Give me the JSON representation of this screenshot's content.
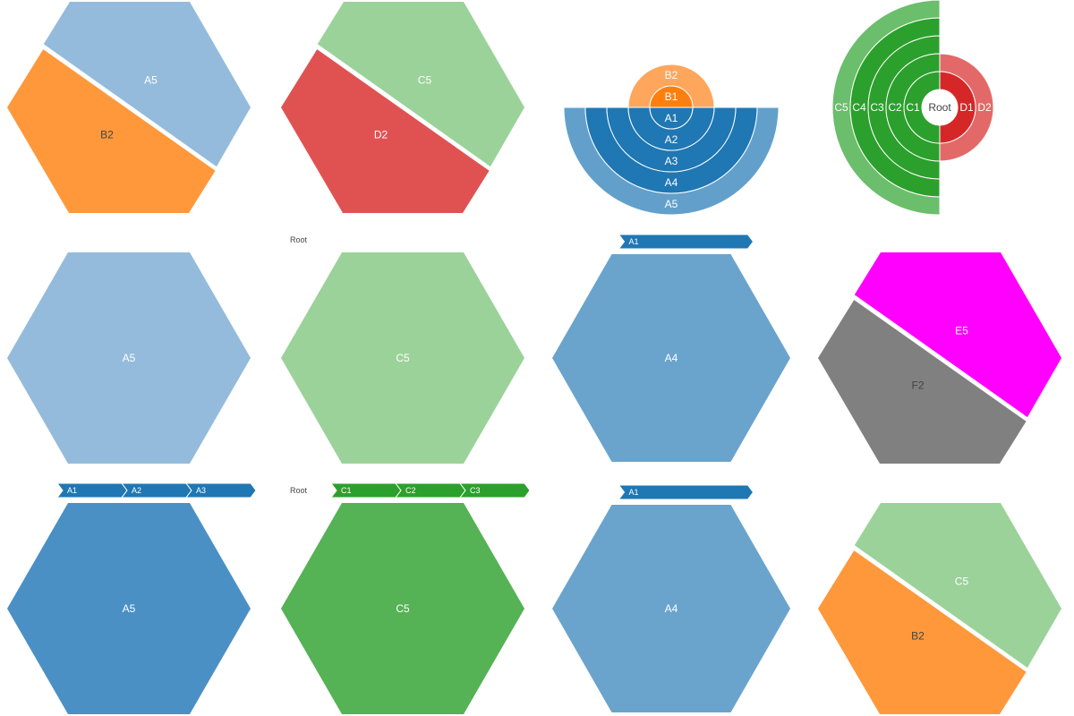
{
  "chart_data": [
    {
      "type": "treemap",
      "name": "hex-A5-B2-top",
      "pathbar": [],
      "tiles": [
        {
          "label": "A5",
          "color": "#94bbdb",
          "text_color": "#ffffff"
        },
        {
          "label": "B2",
          "color": "#fe983b",
          "text_color": "#444444"
        }
      ]
    },
    {
      "type": "treemap",
      "name": "hex-C5-D2-top",
      "pathbar": [],
      "tiles": [
        {
          "label": "C5",
          "color": "#9bd29a",
          "text_color": "#ffffff"
        },
        {
          "label": "D2",
          "color": "#e05252",
          "text_color": "#ffffff"
        }
      ]
    },
    {
      "type": "sunburst",
      "name": "half-sunburst-A-B",
      "rings_down": [
        {
          "label": "A1",
          "color": "#1f77b4"
        },
        {
          "label": "A2",
          "color": "#1f77b4"
        },
        {
          "label": "A3",
          "color": "#1f77b4"
        },
        {
          "label": "A4",
          "color": "#1f77b4"
        },
        {
          "label": "A5",
          "color": "#62a0cb"
        }
      ],
      "rings_up": [
        {
          "label": "B1",
          "color": "#ff7f0e"
        },
        {
          "label": "B2",
          "color": "#ffa65d"
        }
      ]
    },
    {
      "type": "sunburst",
      "name": "half-sunburst-C-D",
      "center": "Root",
      "rings_left": [
        {
          "label": "C1",
          "color": "#2ca02c"
        },
        {
          "label": "C2",
          "color": "#2ca02c"
        },
        {
          "label": "C3",
          "color": "#2ca02c"
        },
        {
          "label": "C4",
          "color": "#2ca02c"
        },
        {
          "label": "C5",
          "color": "#6bbe6b"
        }
      ],
      "rings_right": [
        {
          "label": "D1",
          "color": "#d62728"
        },
        {
          "label": "D2",
          "color": "#e36969"
        }
      ]
    },
    {
      "type": "treemap",
      "name": "hex-A5-mid",
      "pathbar": [],
      "tiles": [
        {
          "label": "A5",
          "color": "#94bbdb",
          "text_color": "#ffffff"
        }
      ]
    },
    {
      "type": "treemap",
      "name": "hex-C5-mid",
      "root_label": "Root",
      "pathbar": [],
      "tiles": [
        {
          "label": "C5",
          "color": "#9bd29a",
          "text_color": "#ffffff"
        }
      ]
    },
    {
      "type": "treemap",
      "name": "hex-A4-mid",
      "pathbar": [
        "A1"
      ],
      "pathbar_color": "#1f77b4",
      "tiles": [
        {
          "label": "A4",
          "color": "#6aa4cc",
          "text_color": "#ffffff"
        }
      ]
    },
    {
      "type": "treemap",
      "name": "hex-E5-F2-mid",
      "pathbar": [],
      "tiles": [
        {
          "label": "E5",
          "color": "#ff00ff",
          "text_color": "#ffffff"
        },
        {
          "label": "F2",
          "color": "#808080",
          "text_color": "#444444"
        }
      ]
    },
    {
      "type": "treemap",
      "name": "hex-A5-bottom",
      "pathbar": [
        "A1",
        "A2",
        "A3"
      ],
      "pathbar_color": "#1f77b4",
      "tiles": [
        {
          "label": "A5",
          "color": "#4a90c4",
          "text_color": "#ffffff"
        }
      ]
    },
    {
      "type": "treemap",
      "name": "hex-C5-bottom",
      "root_label": "Root",
      "pathbar": [
        "C1",
        "C2",
        "C3"
      ],
      "pathbar_color": "#2ca02c",
      "tiles": [
        {
          "label": "C5",
          "color": "#55b255",
          "text_color": "#ffffff"
        }
      ]
    },
    {
      "type": "treemap",
      "name": "hex-A4-bottom",
      "pathbar": [
        "A1"
      ],
      "pathbar_color": "#1f77b4",
      "tiles": [
        {
          "label": "A4",
          "color": "#6aa4cc",
          "text_color": "#ffffff"
        }
      ]
    },
    {
      "type": "treemap",
      "name": "hex-C5-B2-bottom",
      "pathbar": [],
      "tiles": [
        {
          "label": "C5",
          "color": "#9bd29a",
          "text_color": "#ffffff"
        },
        {
          "label": "B2",
          "color": "#fe983b",
          "text_color": "#444444"
        }
      ]
    }
  ]
}
